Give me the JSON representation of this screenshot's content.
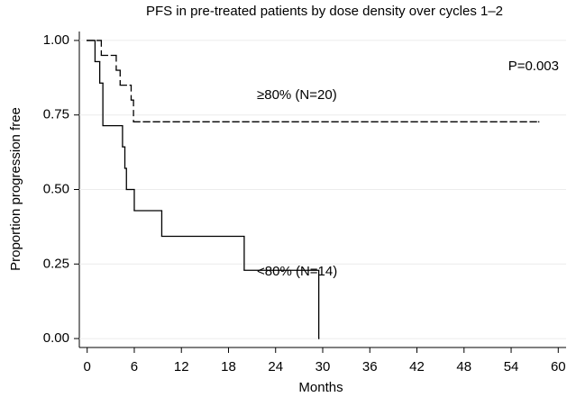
{
  "chart_data": {
    "type": "step",
    "title": "PFS in pre-treated patients by dose density over cycles 1–2",
    "xlabel": "Months",
    "ylabel": "Proportion progression free",
    "annotations": [
      "P=0.003"
    ],
    "series": [
      {
        "name": "<80% (N=14)",
        "color": "#000000",
        "dash": "none",
        "x": [
          0,
          1,
          1.6,
          2,
          4.5,
          4.8,
          5,
          6,
          9.5,
          20,
          29.5
        ],
        "values": [
          1,
          0.929,
          0.857,
          0.714,
          0.643,
          0.571,
          0.5,
          0.429,
          0.343,
          0.229,
          0
        ]
      },
      {
        "name": "≥80% (N=20)",
        "color": "#000000",
        "dash": "7,4",
        "x": [
          0,
          1.8,
          3.7,
          4.2,
          5.6,
          5.9,
          57.5
        ],
        "values": [
          1,
          0.95,
          0.9,
          0.85,
          0.8,
          0.727,
          0.727
        ]
      }
    ],
    "xlim": [
      -1,
      61
    ],
    "ylim": [
      -0.03,
      1.03
    ],
    "xticks": [
      0,
      6,
      12,
      18,
      24,
      30,
      36,
      42,
      48,
      54,
      60
    ],
    "yticks": [
      {
        "value": 0,
        "label": "0.00"
      },
      {
        "value": 0.25,
        "label": "0.25"
      },
      {
        "value": 0.5,
        "label": "0.50"
      },
      {
        "value": 0.75,
        "label": "0.75"
      },
      {
        "value": 1,
        "label": "1.00"
      }
    ],
    "grid": true
  }
}
